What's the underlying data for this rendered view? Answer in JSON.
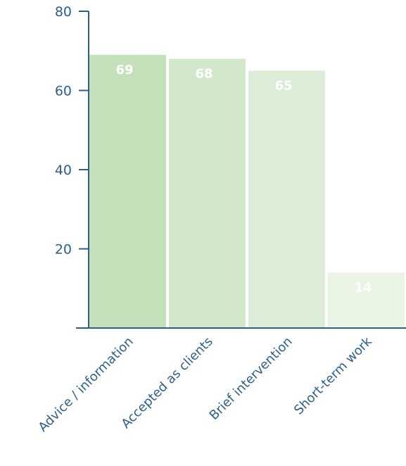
{
  "chart_data": {
    "type": "bar",
    "categories": [
      "Advice / information",
      "Accepted as clients",
      "Brief intervention",
      "Short-term work"
    ],
    "values": [
      69,
      68,
      65,
      14
    ],
    "data_labels": [
      "69",
      "68",
      "65",
      "14"
    ],
    "y_ticks": [
      "20",
      "40",
      "60",
      "80"
    ],
    "ylim": [
      0,
      80
    ],
    "grid": false,
    "legend": "none",
    "bar_colors": [
      "#c4e1bb",
      "#d3e8cb",
      "#dcecd6",
      "#e9f4e5"
    ],
    "axis_color": "#2f5f86",
    "label_color": "#2f5f86"
  }
}
